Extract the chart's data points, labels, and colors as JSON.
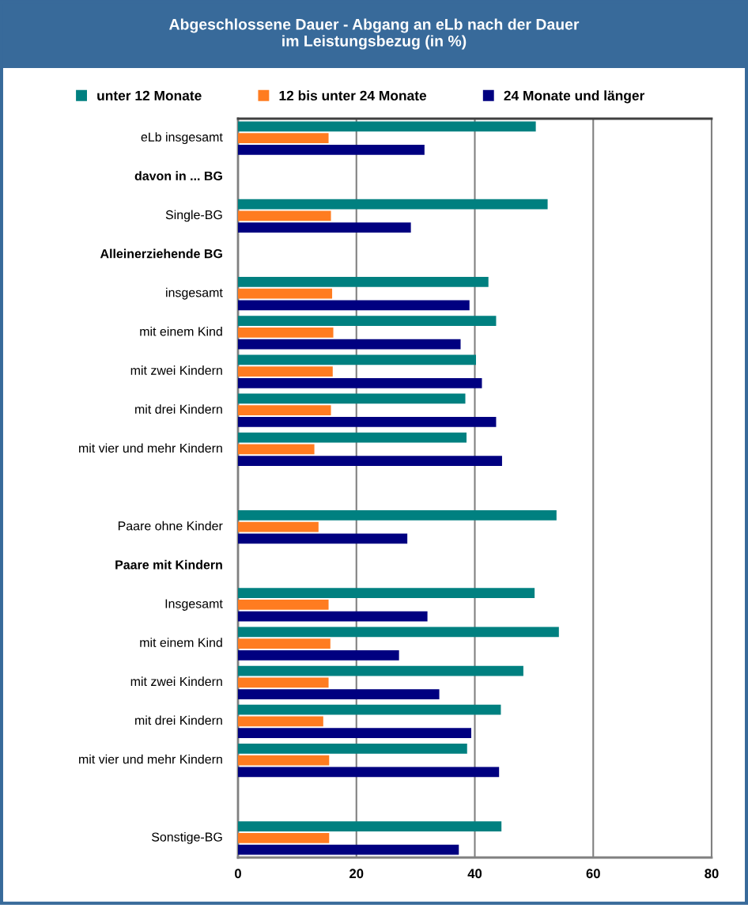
{
  "chart_data": {
    "type": "bar",
    "orientation": "horizontal",
    "title": "Abgeschlossene Dauer - Abgang an eLb nach der Dauer\nim Leistungsbezug (in %)",
    "categories": [
      "eLb insgesamt",
      "davon in ... BG",
      "Single-BG",
      "Alleinerziehende BG",
      "insgesamt",
      "mit einem Kind",
      "mit zwei Kindern",
      "mit drei Kindern",
      "mit vier und mehr Kindern",
      null,
      "Paare ohne Kinder",
      "Paare mit Kindern",
      "Insgesamt",
      "mit einem Kind",
      "mit zwei Kindern",
      "mit drei Kindern",
      "mit vier und mehr Kindern",
      null,
      "Sonstige-BG"
    ],
    "series": [
      {
        "name": "unter 12 Monate",
        "color": "#008080",
        "values": [
          50.3,
          null,
          52.3,
          null,
          42.3,
          43.6,
          40.2,
          38.4,
          38.6,
          null,
          53.8,
          null,
          50.1,
          54.2,
          48.2,
          44.4,
          38.7,
          null,
          44.5
        ]
      },
      {
        "name": "12 bis unter 24 Monate",
        "color": "#ff7c20",
        "values": [
          15.3,
          null,
          15.7,
          null,
          15.9,
          16.1,
          16.0,
          15.7,
          12.9,
          null,
          13.6,
          null,
          15.3,
          15.6,
          15.3,
          14.4,
          15.4,
          null,
          15.4
        ]
      },
      {
        "name": "24 Monate und länger",
        "color": "#000080",
        "values": [
          31.5,
          null,
          29.2,
          null,
          39.1,
          37.6,
          41.2,
          43.6,
          44.6,
          null,
          28.6,
          null,
          32.0,
          27.2,
          34.0,
          39.4,
          44.1,
          null,
          37.3
        ]
      }
    ],
    "xlim": [
      0,
      80
    ],
    "xticks": [
      0,
      20,
      40,
      60,
      80
    ],
    "grid": "x",
    "legend": "top"
  }
}
